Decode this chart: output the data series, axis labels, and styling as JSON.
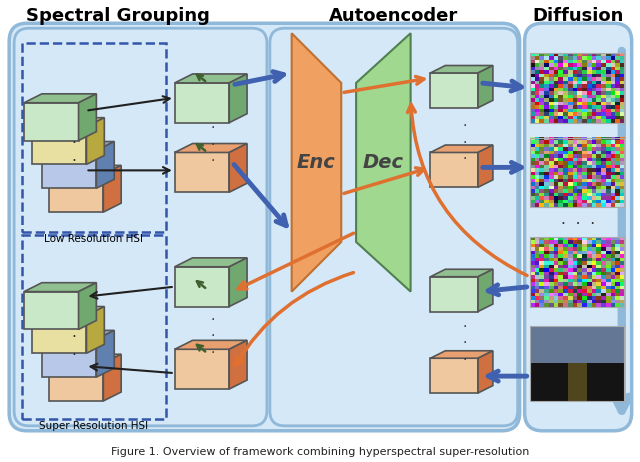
{
  "title": "Figure 1: Overview of framework combining hyperspectral super-resolution",
  "section_titles": [
    "Spectral Grouping",
    "Autoencoder",
    "Diffusion"
  ],
  "labels": {
    "low_res": "Low Resolution HSI",
    "super_res": "Super Resolution HSI",
    "enc": "Enc",
    "dec": "Dec"
  },
  "colors": {
    "background": "#ffffff",
    "panel_bg": "#c8dff0",
    "panel_border": "#a0c4e0",
    "cube_green_top": "#90c090",
    "cube_green_front": "#c8e8c8",
    "cube_green_side": "#70a870",
    "cube_yellow_top": "#d4c870",
    "cube_yellow_front": "#e8e0a0",
    "cube_yellow_side": "#b8a840",
    "cube_orange_top": "#e8a070",
    "cube_orange_front": "#f0c8a0",
    "cube_orange_side": "#d07040",
    "cube_blue_top": "#90a8d0",
    "cube_blue_front": "#b8c8e8",
    "cube_blue_side": "#6080b0",
    "arrow_orange": "#e07030",
    "arrow_blue": "#4060b0",
    "arrow_black": "#202020",
    "arrow_green": "#406030",
    "enc_color": "#f0a060",
    "dec_color": "#90c890",
    "dashed_border": "#4060b0",
    "noise_color1": "#cc4444",
    "noise_color2": "#4444cc",
    "noise_color3": "#44cc44",
    "section_title_color": "#000000",
    "text_color": "#000000"
  },
  "fig_width": 6.4,
  "fig_height": 4.62,
  "dpi": 100
}
